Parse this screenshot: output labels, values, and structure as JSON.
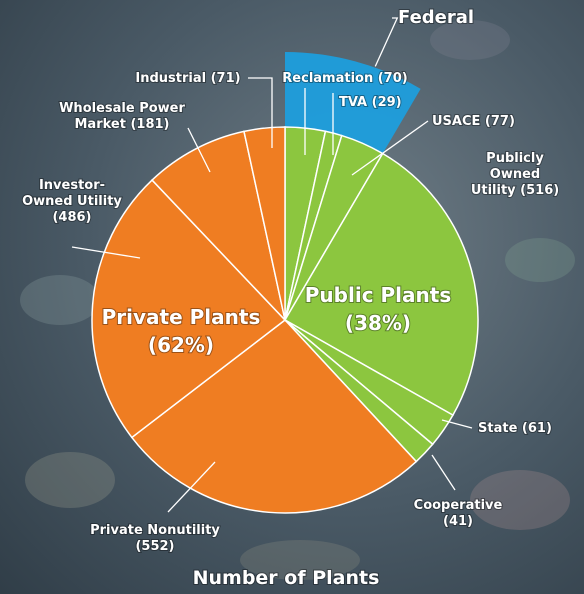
{
  "chart_data": {
    "type": "pie",
    "title": "Number of Plants",
    "categories": [
      "Reclamation (70)",
      "TVA (29)",
      "USACE (77)",
      "Publicly\nOwned\nUtility (516)",
      "State (61)",
      "Cooperative\n(41)",
      "Private Nonutility\n(552)",
      "Investor-\nOwned Utility\n(486)",
      "Wholesale Power\nMarket (181)",
      "Industrial (71)"
    ],
    "values": [
      70,
      29,
      77,
      516,
      61,
      41,
      552,
      486,
      181,
      71
    ],
    "colors": [
      "#8cc63f",
      "#8cc63f",
      "#8cc63f",
      "#8cc63f",
      "#8cc63f",
      "#8cc63f",
      "#ef7d22",
      "#ef7d22",
      "#ef7d22",
      "#ef7d22"
    ],
    "groups": [
      {
        "name": "Public Plants",
        "share": "(38%)"
      },
      {
        "name": "Private Plants",
        "share": "(62%)"
      }
    ],
    "annotation": {
      "text": "Federal",
      "color": "#1ba1e2"
    }
  }
}
